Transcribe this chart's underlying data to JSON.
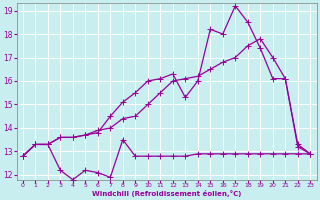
{
  "background_color": "#c8eef0",
  "grid_color": "#ffffff",
  "line_color": "#990099",
  "xlabel": "Windchill (Refroidissement éolien,°C)",
  "xlim": [
    -0.5,
    23.5
  ],
  "ylim": [
    11.8,
    19.3
  ],
  "yticks": [
    12,
    13,
    14,
    15,
    16,
    17,
    18,
    19
  ],
  "xticks": [
    0,
    1,
    2,
    3,
    4,
    5,
    6,
    7,
    8,
    9,
    10,
    11,
    12,
    13,
    14,
    15,
    16,
    17,
    18,
    19,
    20,
    21,
    22,
    23
  ],
  "series_flat": {
    "x": [
      0,
      1,
      2,
      3,
      4,
      5,
      6,
      7,
      8,
      9,
      10,
      11,
      12,
      13,
      14,
      15,
      16,
      17,
      18,
      19,
      20,
      21,
      22,
      23
    ],
    "y": [
      12.8,
      13.3,
      13.3,
      12.2,
      11.8,
      12.2,
      12.1,
      11.9,
      13.5,
      12.8,
      12.8,
      12.8,
      12.8,
      12.8,
      12.9,
      12.9,
      12.9,
      12.9,
      12.9,
      12.9,
      12.9,
      12.9,
      12.9,
      12.9
    ]
  },
  "series_spiky": {
    "x": [
      0,
      1,
      2,
      3,
      4,
      5,
      6,
      7,
      8,
      9,
      10,
      11,
      12,
      13,
      14,
      15,
      16,
      17,
      18,
      19,
      20,
      21,
      22,
      23
    ],
    "y": [
      12.8,
      13.3,
      13.3,
      13.6,
      13.6,
      13.7,
      13.8,
      14.5,
      15.1,
      15.5,
      16.0,
      16.1,
      16.3,
      15.3,
      16.0,
      18.2,
      18.0,
      19.2,
      18.5,
      17.4,
      16.1,
      16.1,
      13.2,
      12.9
    ]
  },
  "series_smooth": {
    "x": [
      0,
      1,
      2,
      3,
      4,
      5,
      6,
      7,
      8,
      9,
      10,
      11,
      12,
      13,
      14,
      15,
      16,
      17,
      18,
      19,
      20,
      21,
      22,
      23
    ],
    "y": [
      12.8,
      13.3,
      13.3,
      13.6,
      13.6,
      13.7,
      13.9,
      14.0,
      14.4,
      14.5,
      15.0,
      15.5,
      16.0,
      16.1,
      16.2,
      16.5,
      16.8,
      17.0,
      17.5,
      17.8,
      17.0,
      16.1,
      13.3,
      12.9
    ]
  }
}
